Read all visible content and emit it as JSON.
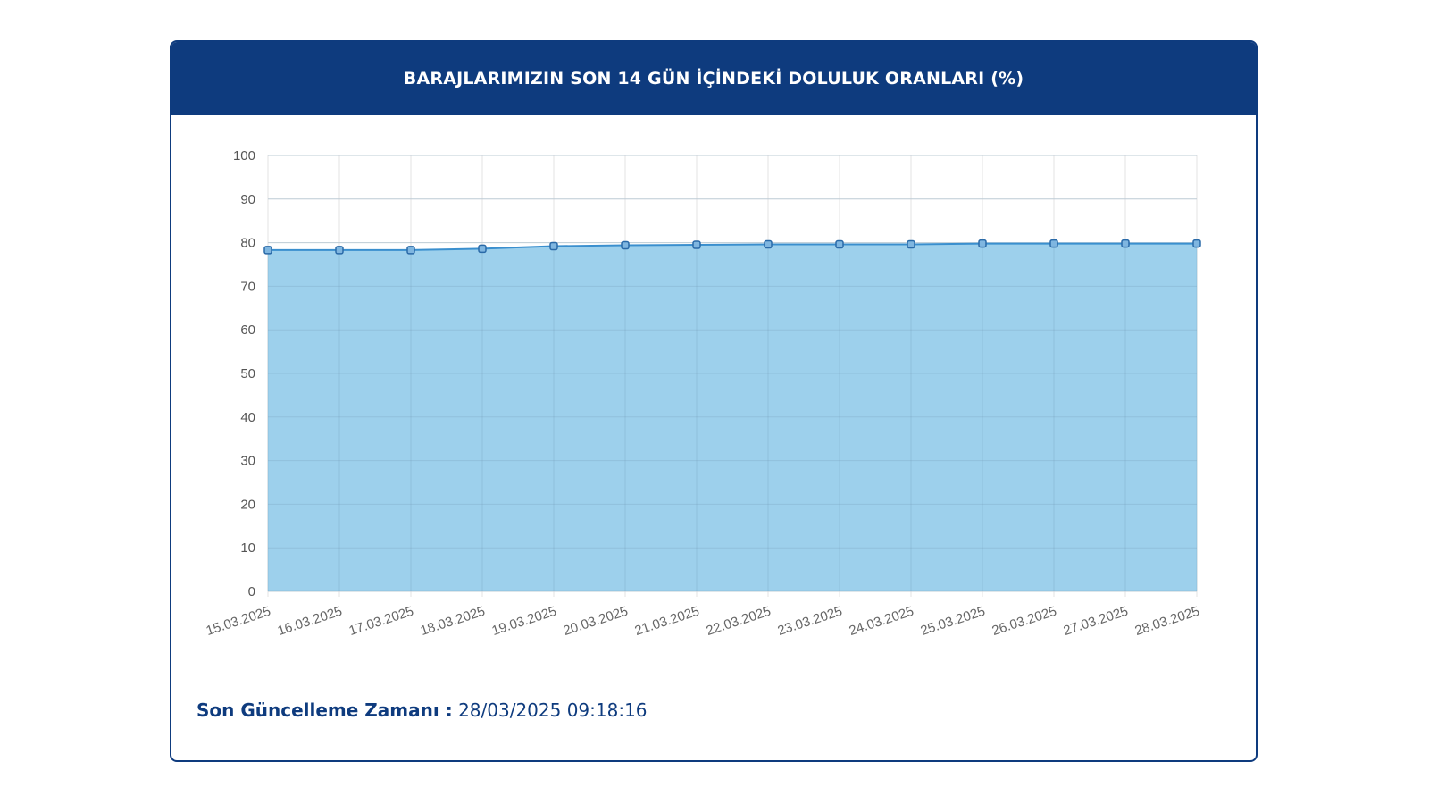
{
  "card": {
    "title": "BARAJLARIMIZIN SON 14 GÜN İÇİNDEKİ DOLULUK ORANLARI (%)"
  },
  "footer": {
    "label": "Son Güncelleme Zamanı :",
    "value": "28/03/2025 09:18:16"
  },
  "colors": {
    "header_bg": "#0e3b7e",
    "area_fill": "#9dd0ec",
    "line": "#3a8fce"
  },
  "chart_data": {
    "type": "area",
    "x": [
      "15.03.2025",
      "16.03.2025",
      "17.03.2025",
      "18.03.2025",
      "19.03.2025",
      "20.03.2025",
      "21.03.2025",
      "22.03.2025",
      "23.03.2025",
      "24.03.2025",
      "25.03.2025",
      "26.03.2025",
      "27.03.2025",
      "28.03.2025"
    ],
    "series": [
      {
        "values": [
          78.3,
          78.3,
          78.3,
          78.6,
          79.2,
          79.4,
          79.5,
          79.6,
          79.6,
          79.6,
          79.8,
          79.8,
          79.8,
          79.8
        ]
      }
    ],
    "ylim": [
      0,
      100
    ],
    "yticks": [
      0,
      10,
      20,
      30,
      40,
      50,
      60,
      70,
      80,
      90,
      100
    ],
    "grid": true,
    "legend": "none"
  }
}
